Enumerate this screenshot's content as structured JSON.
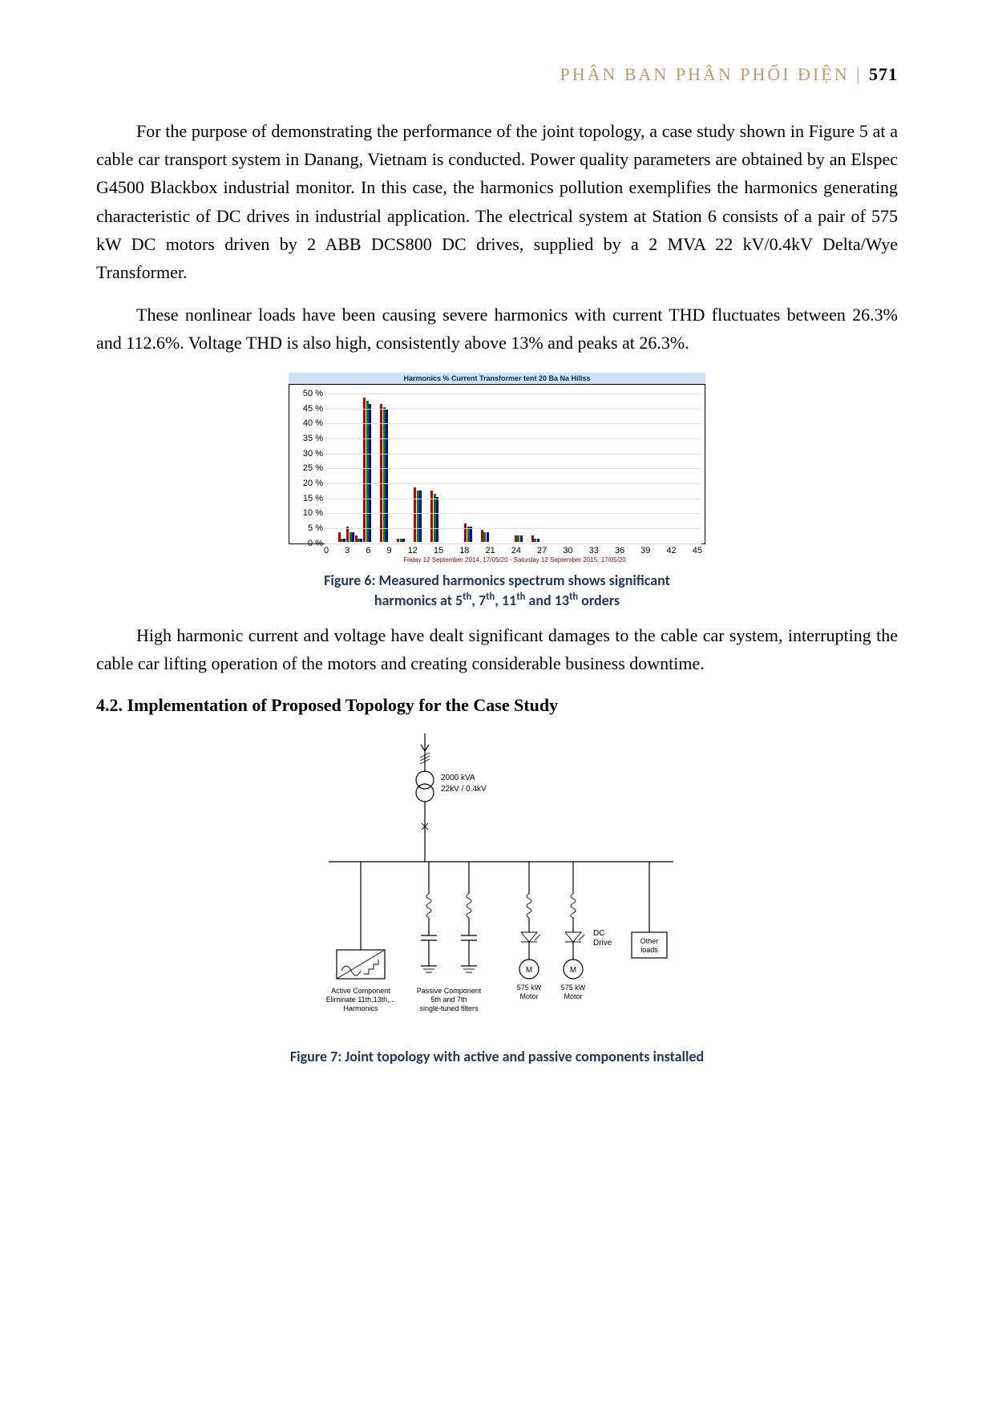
{
  "header": {
    "section_title": "PHÂN BAN PHÂN PHỐI ĐIỆN",
    "separator": " | ",
    "page_number": "571"
  },
  "paragraphs": {
    "p1": "For the purpose of demonstrating the performance of the joint topology, a case study shown in Figure 5 at a cable car transport system in Danang, Vietnam is conducted. Power quality parameters are obtained by an Elspec G4500 Blackbox industrial monitor. In this case, the harmonics pollution exemplifies the harmonics generating characteristic of DC drives in industrial application. The electrical system at Station 6 consists of a pair of 575 kW DC motors driven by 2 ABB DCS800 DC drives, supplied by a 2 MVA 22 kV/0.4kV Delta/Wye Transformer.",
    "p2": "These nonlinear loads have been causing severe harmonics with current THD fluctuates between 26.3% and 112.6%. Voltage THD is also high, consistently above 13% and peaks at 26.3%.",
    "p3": "High harmonic current and voltage have dealt significant damages to the cable car system, interrupting the cable car lifting operation of the motors and creating considerable business downtime."
  },
  "section_heading": "4.2. Implementation of Proposed Topology for the Case Study",
  "figure6": {
    "type": "bar",
    "title": "Harmonics % Current Transformer tent 20 Ba Na Hillss",
    "footer": "Friday 12 September 2014, 17/05/20 - Saturday 12 September 2015, 17/05/20",
    "caption_line1": "Figure 6: Measured harmonics spectrum shows significant",
    "caption_line2_prefix": "harmonics at 5",
    "caption_line2_mid1": ", 7",
    "caption_line2_mid2": ", 11",
    "caption_line2_mid3": " and 13",
    "caption_line2_suffix": " orders",
    "caption_sup": "th",
    "ylim": [
      0,
      52
    ],
    "yticks": [
      0,
      5,
      10,
      15,
      20,
      25,
      30,
      35,
      40,
      45,
      50
    ],
    "ytick_labels": [
      "0 %",
      "5 %",
      "10 %",
      "15 %",
      "20 %",
      "25 %",
      "30 %",
      "35 %",
      "40 %",
      "45 %",
      "50 %"
    ],
    "xticks": [
      0,
      3,
      6,
      9,
      12,
      15,
      18,
      21,
      24,
      27,
      30,
      33,
      36,
      39,
      42,
      45
    ],
    "series_colors": [
      "#c00000",
      "#008000",
      "#0000c0"
    ],
    "background_color": "#ffffff",
    "grid_color": "#e0e0e0",
    "harmonics": [
      {
        "order": 2,
        "values": [
          3,
          1,
          1
        ]
      },
      {
        "order": 3,
        "values": [
          5,
          3,
          3
        ]
      },
      {
        "order": 4,
        "values": [
          2,
          1,
          1
        ]
      },
      {
        "order": 5,
        "values": [
          48,
          47,
          46
        ]
      },
      {
        "order": 7,
        "values": [
          46,
          45,
          44
        ]
      },
      {
        "order": 9,
        "values": [
          1,
          1,
          1
        ]
      },
      {
        "order": 11,
        "values": [
          18,
          17,
          17
        ]
      },
      {
        "order": 13,
        "values": [
          17,
          16,
          15
        ]
      },
      {
        "order": 17,
        "values": [
          6,
          5,
          5
        ]
      },
      {
        "order": 19,
        "values": [
          4,
          3,
          3
        ]
      },
      {
        "order": 23,
        "values": [
          2,
          2,
          2
        ]
      },
      {
        "order": 25,
        "values": [
          2,
          1,
          1
        ]
      }
    ]
  },
  "figure7": {
    "type": "single-line-diagram",
    "caption": "Figure 7: Joint topology with active and passive components installed",
    "labels": {
      "transformer_l1": "2000 kVA",
      "transformer_l2": "22kV / 0.4kV",
      "active_l1": "Active Component",
      "active_l2": "Eliminate 11th,13th,...",
      "active_l3": "Harmonics",
      "passive_l1": "Passive Component",
      "passive_l2": "5th and 7th",
      "passive_l3": "single-tuned filters",
      "dc_drive_l1": "DC",
      "dc_drive_l2": "Drive",
      "other_l1": "Other",
      "other_l2": "loads",
      "motor_letter": "M",
      "motor_l1": "575 kW",
      "motor_l2": "Motor"
    },
    "line_color": "#000000",
    "label_fontsize": 10
  }
}
